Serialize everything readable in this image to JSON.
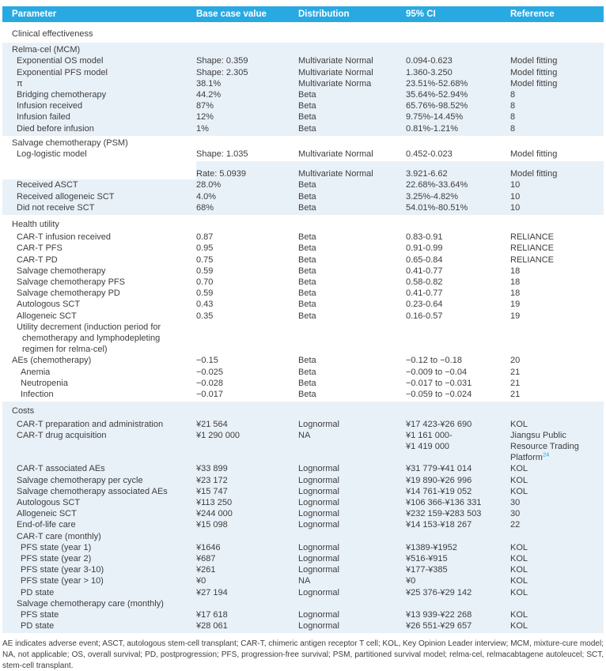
{
  "colors": {
    "header_bg": "#29a9e1",
    "header_text": "#ffffff",
    "band_bg": "#e9f1f8",
    "body_text": "#3d3d3d",
    "citation_link": "#2b9fd8"
  },
  "header": {
    "columns": [
      "Parameter",
      "Base case value",
      "Distribution",
      "95% CI",
      "Reference"
    ]
  },
  "bands": [
    {
      "bg": "white",
      "rows": [
        {
          "type": "section",
          "indent": 0,
          "label": "Clinical effectiveness"
        }
      ]
    },
    {
      "bg": "blue",
      "rows": [
        {
          "type": "sub",
          "indent": 0,
          "label": "Relma-cel (MCM)"
        },
        {
          "type": "data",
          "indent": 1,
          "label": "Exponential OS model",
          "value": "Shape: 0.359",
          "dist": "Multivariate Normal",
          "ci": "0.094-0.623",
          "ref": "Model fitting"
        },
        {
          "type": "data",
          "indent": 1,
          "label": "Exponential PFS model",
          "value": "Shape: 2.305",
          "dist": "Multivariate Normal",
          "ci": "1.360-3.250",
          "ref": "Model fitting"
        },
        {
          "type": "data",
          "indent": 1,
          "label": "π",
          "value": "38.1%",
          "dist": "Multivariate Norma",
          "ci": "23.51%-52.68%",
          "ref": "Model fitting"
        },
        {
          "type": "data",
          "indent": 1,
          "label": "Bridging chemotherapy",
          "value": "44.2%",
          "dist": "Beta",
          "ci": "35.64%-52.94%",
          "ref": "8"
        },
        {
          "type": "data",
          "indent": 1,
          "label": "Infusion received",
          "value": "87%",
          "dist": "Beta",
          "ci": "65.76%-98.52%",
          "ref": "8"
        },
        {
          "type": "data",
          "indent": 1,
          "label": "Infusion failed",
          "value": "12%",
          "dist": "Beta",
          "ci": "9.75%-14.45%",
          "ref": "8"
        },
        {
          "type": "data",
          "indent": 1,
          "label": "Died before infusion",
          "value": "1%",
          "dist": "Beta",
          "ci": "0.81%-1.21%",
          "ref": "8"
        }
      ]
    },
    {
      "bg": "white",
      "rows": [
        {
          "type": "sub",
          "indent": 0,
          "label": "Salvage chemotherapy (PSM)"
        },
        {
          "type": "data",
          "indent": 1,
          "label": "Log-logistic model",
          "value": "Shape: 1.035",
          "dist": "Multivariate Normal",
          "ci": "0.452-0.023",
          "ref": "Model fitting"
        }
      ]
    },
    {
      "bg": "blue",
      "pt0": true,
      "rows": [
        {
          "type": "spacer",
          "white_first": true
        },
        {
          "type": "data",
          "white_first": true,
          "indent": 1,
          "label": "",
          "value": "Rate: 5.0939",
          "dist": "Multivariate Normal",
          "ci": "3.921-6.62",
          "ref": "Model fitting"
        },
        {
          "type": "data",
          "indent": 1,
          "label": "Received ASCT",
          "value": "28.0%",
          "dist": "Beta",
          "ci": "22.68%-33.64%",
          "ref": "10"
        },
        {
          "type": "data",
          "indent": 1,
          "label": "Received allogeneic SCT",
          "value": "4.0%",
          "dist": "Beta",
          "ci": "3.25%-4.82%",
          "ref": "10"
        },
        {
          "type": "data",
          "indent": 1,
          "label": "Did not receive SCT",
          "value": "68%",
          "dist": "Beta",
          "ci": "54.01%-80.51%",
          "ref": "10"
        }
      ]
    },
    {
      "bg": "white",
      "rows": [
        {
          "type": "section",
          "indent": 0,
          "label": "Health utility"
        },
        {
          "type": "data",
          "indent": 1,
          "label": "CAR-T infusion received",
          "value": "0.87",
          "dist": "Beta",
          "ci": "0.83-0.91",
          "ref": "RELIANCE"
        },
        {
          "type": "data",
          "indent": 1,
          "label": "CAR-T PFS",
          "value": "0.95",
          "dist": "Beta",
          "ci": "0.91-0.99",
          "ref": "RELIANCE"
        },
        {
          "type": "data",
          "indent": 1,
          "label": "CAR-T PD",
          "value": "0.75",
          "dist": "Beta",
          "ci": "0.65-0.84",
          "ref": "RELIANCE"
        },
        {
          "type": "data",
          "indent": 1,
          "label": "Salvage chemotherapy",
          "value": "0.59",
          "dist": "Beta",
          "ci": "0.41-0.77",
          "ref": "18"
        },
        {
          "type": "data",
          "indent": 1,
          "label": "Salvage chemotherapy PFS",
          "value": "0.70",
          "dist": "Beta",
          "ci": "0.58-0.82",
          "ref": "18"
        },
        {
          "type": "data",
          "indent": 1,
          "label": "Salvage chemotherapy PD",
          "value": "0.59",
          "dist": "Beta",
          "ci": "0.41-0.77",
          "ref": "18"
        },
        {
          "type": "data",
          "indent": 1,
          "label": "Autologous SCT",
          "value": "0.43",
          "dist": "Beta",
          "ci": "0.23-0.64",
          "ref": "19"
        },
        {
          "type": "data",
          "indent": 1,
          "label": "Allogeneic SCT",
          "value": "0.35",
          "dist": "Beta",
          "ci": "0.16-0.57",
          "ref": "19"
        },
        {
          "type": "data",
          "indent": 1,
          "hang": true,
          "label": "Utility decrement (induction period for chemotherapy and lymphodepleting regimen for relma-cel)",
          "value": "",
          "dist": "",
          "ci": "",
          "ref": ""
        },
        {
          "type": "data",
          "indent": 0,
          "label": "AEs (chemotherapy)",
          "value": "−0.15",
          "dist": "Beta",
          "ci": "−0.12 to −0.18",
          "ref": "20"
        },
        {
          "type": "data",
          "indent": 2,
          "label": "Anemia",
          "value": "−0.025",
          "dist": "Beta",
          "ci": "−0.009 to −0.04",
          "ref": "21"
        },
        {
          "type": "data",
          "indent": 2,
          "label": "Neutropenia",
          "value": "−0.028",
          "dist": "Beta",
          "ci": "−0.017 to −0.031",
          "ref": "21"
        },
        {
          "type": "data",
          "indent": 2,
          "label": "Infection",
          "value": "−0.017",
          "dist": "Beta",
          "ci": "−0.059 to −0.024",
          "ref": "21"
        }
      ]
    },
    {
      "bg": "blue",
      "rows": [
        {
          "type": "section",
          "indent": 0,
          "label": "Costs"
        },
        {
          "type": "data",
          "indent": 1,
          "label": "CAR-T preparation and administration",
          "value": "¥21 564",
          "dist": "Lognormal",
          "ci": "¥17 423-¥26 690",
          "ref": "KOL"
        },
        {
          "type": "data",
          "indent": 1,
          "label": "CAR-T drug acquisition",
          "value": "¥1 290 000",
          "dist": "NA",
          "ci": "¥1 161 000-\n¥1 419 000",
          "ref": "Jiangsu Public Resource Trading Platform",
          "refsup": "24"
        },
        {
          "type": "data",
          "indent": 1,
          "label": "CAR-T associated AEs",
          "value": "¥33 899",
          "dist": "Lognormal",
          "ci": "¥31 779-¥41 014",
          "ref": "KOL"
        },
        {
          "type": "data",
          "indent": 1,
          "label": "Salvage chemotherapy per cycle",
          "value": "¥23 172",
          "dist": "Lognormal",
          "ci": "¥19 890-¥26 996",
          "ref": "KOL"
        },
        {
          "type": "data",
          "indent": 1,
          "label": "Salvage chemotherapy associated AEs",
          "value": "¥15 747",
          "dist": "Lognormal",
          "ci": "¥14 761-¥19 052",
          "ref": "KOL"
        },
        {
          "type": "data",
          "indent": 1,
          "label": "Autologous SCT",
          "value": "¥113 250",
          "dist": "Lognormal",
          "ci": "¥106 366-¥136 331",
          "ref": "30"
        },
        {
          "type": "data",
          "indent": 1,
          "label": "Allogeneic SCT",
          "value": "¥244 000",
          "dist": "Lognormal",
          "ci": "¥232 159-¥283 503",
          "ref": "30"
        },
        {
          "type": "data",
          "indent": 1,
          "label": "End-of-life care",
          "value": "¥15 098",
          "dist": "Lognormal",
          "ci": "¥14 153-¥18 267",
          "ref": "22"
        },
        {
          "type": "sub",
          "indent": 1,
          "label": "CAR-T care (monthly)"
        },
        {
          "type": "data",
          "indent": 2,
          "label": "PFS state (year 1)",
          "value": "¥1646",
          "dist": "Lognormal",
          "ci": "¥1389-¥1952",
          "ref": "KOL"
        },
        {
          "type": "data",
          "indent": 2,
          "label": "PFS state (year 2)",
          "value": "¥687",
          "dist": "Lognormal",
          "ci": "¥516-¥915",
          "ref": "KOL"
        },
        {
          "type": "data",
          "indent": 2,
          "label": "PFS state (year 3-10)",
          "value": "¥261",
          "dist": "Lognormal",
          "ci": "¥177-¥385",
          "ref": "KOL"
        },
        {
          "type": "data",
          "indent": 2,
          "label": "PFS state (year > 10)",
          "value": "¥0",
          "dist": "NA",
          "ci": "¥0",
          "ref": "KOL"
        },
        {
          "type": "data",
          "indent": 2,
          "label": "PD state",
          "value": "¥27 194",
          "dist": "Lognormal",
          "ci": "¥25 376-¥29 142",
          "ref": "KOL"
        },
        {
          "type": "sub",
          "indent": 1,
          "label": "Salvage chemotherapy care (monthly)"
        },
        {
          "type": "data",
          "indent": 2,
          "label": "PFS state",
          "value": "¥17 618",
          "dist": "Lognormal",
          "ci": "¥13 939-¥22 268",
          "ref": "KOL"
        },
        {
          "type": "data",
          "indent": 2,
          "label": "PD state",
          "value": "¥28 061",
          "dist": "Lognormal",
          "ci": "¥26 551-¥29 657",
          "ref": "KOL"
        }
      ]
    }
  ],
  "footnote": "AE indicates adverse event; ASCT, autologous stem-cell transplant; CAR-T, chimeric antigen receptor T cell; KOL, Key Opinion Leader interview; MCM, mixture-cure model; NA, not applicable; OS, overall survival; PD, postprogression; PFS, progression-free survival; PSM, partitioned survival model; relma-cel, relmacabtagene autoleucel; SCT, stem-cell transplant."
}
